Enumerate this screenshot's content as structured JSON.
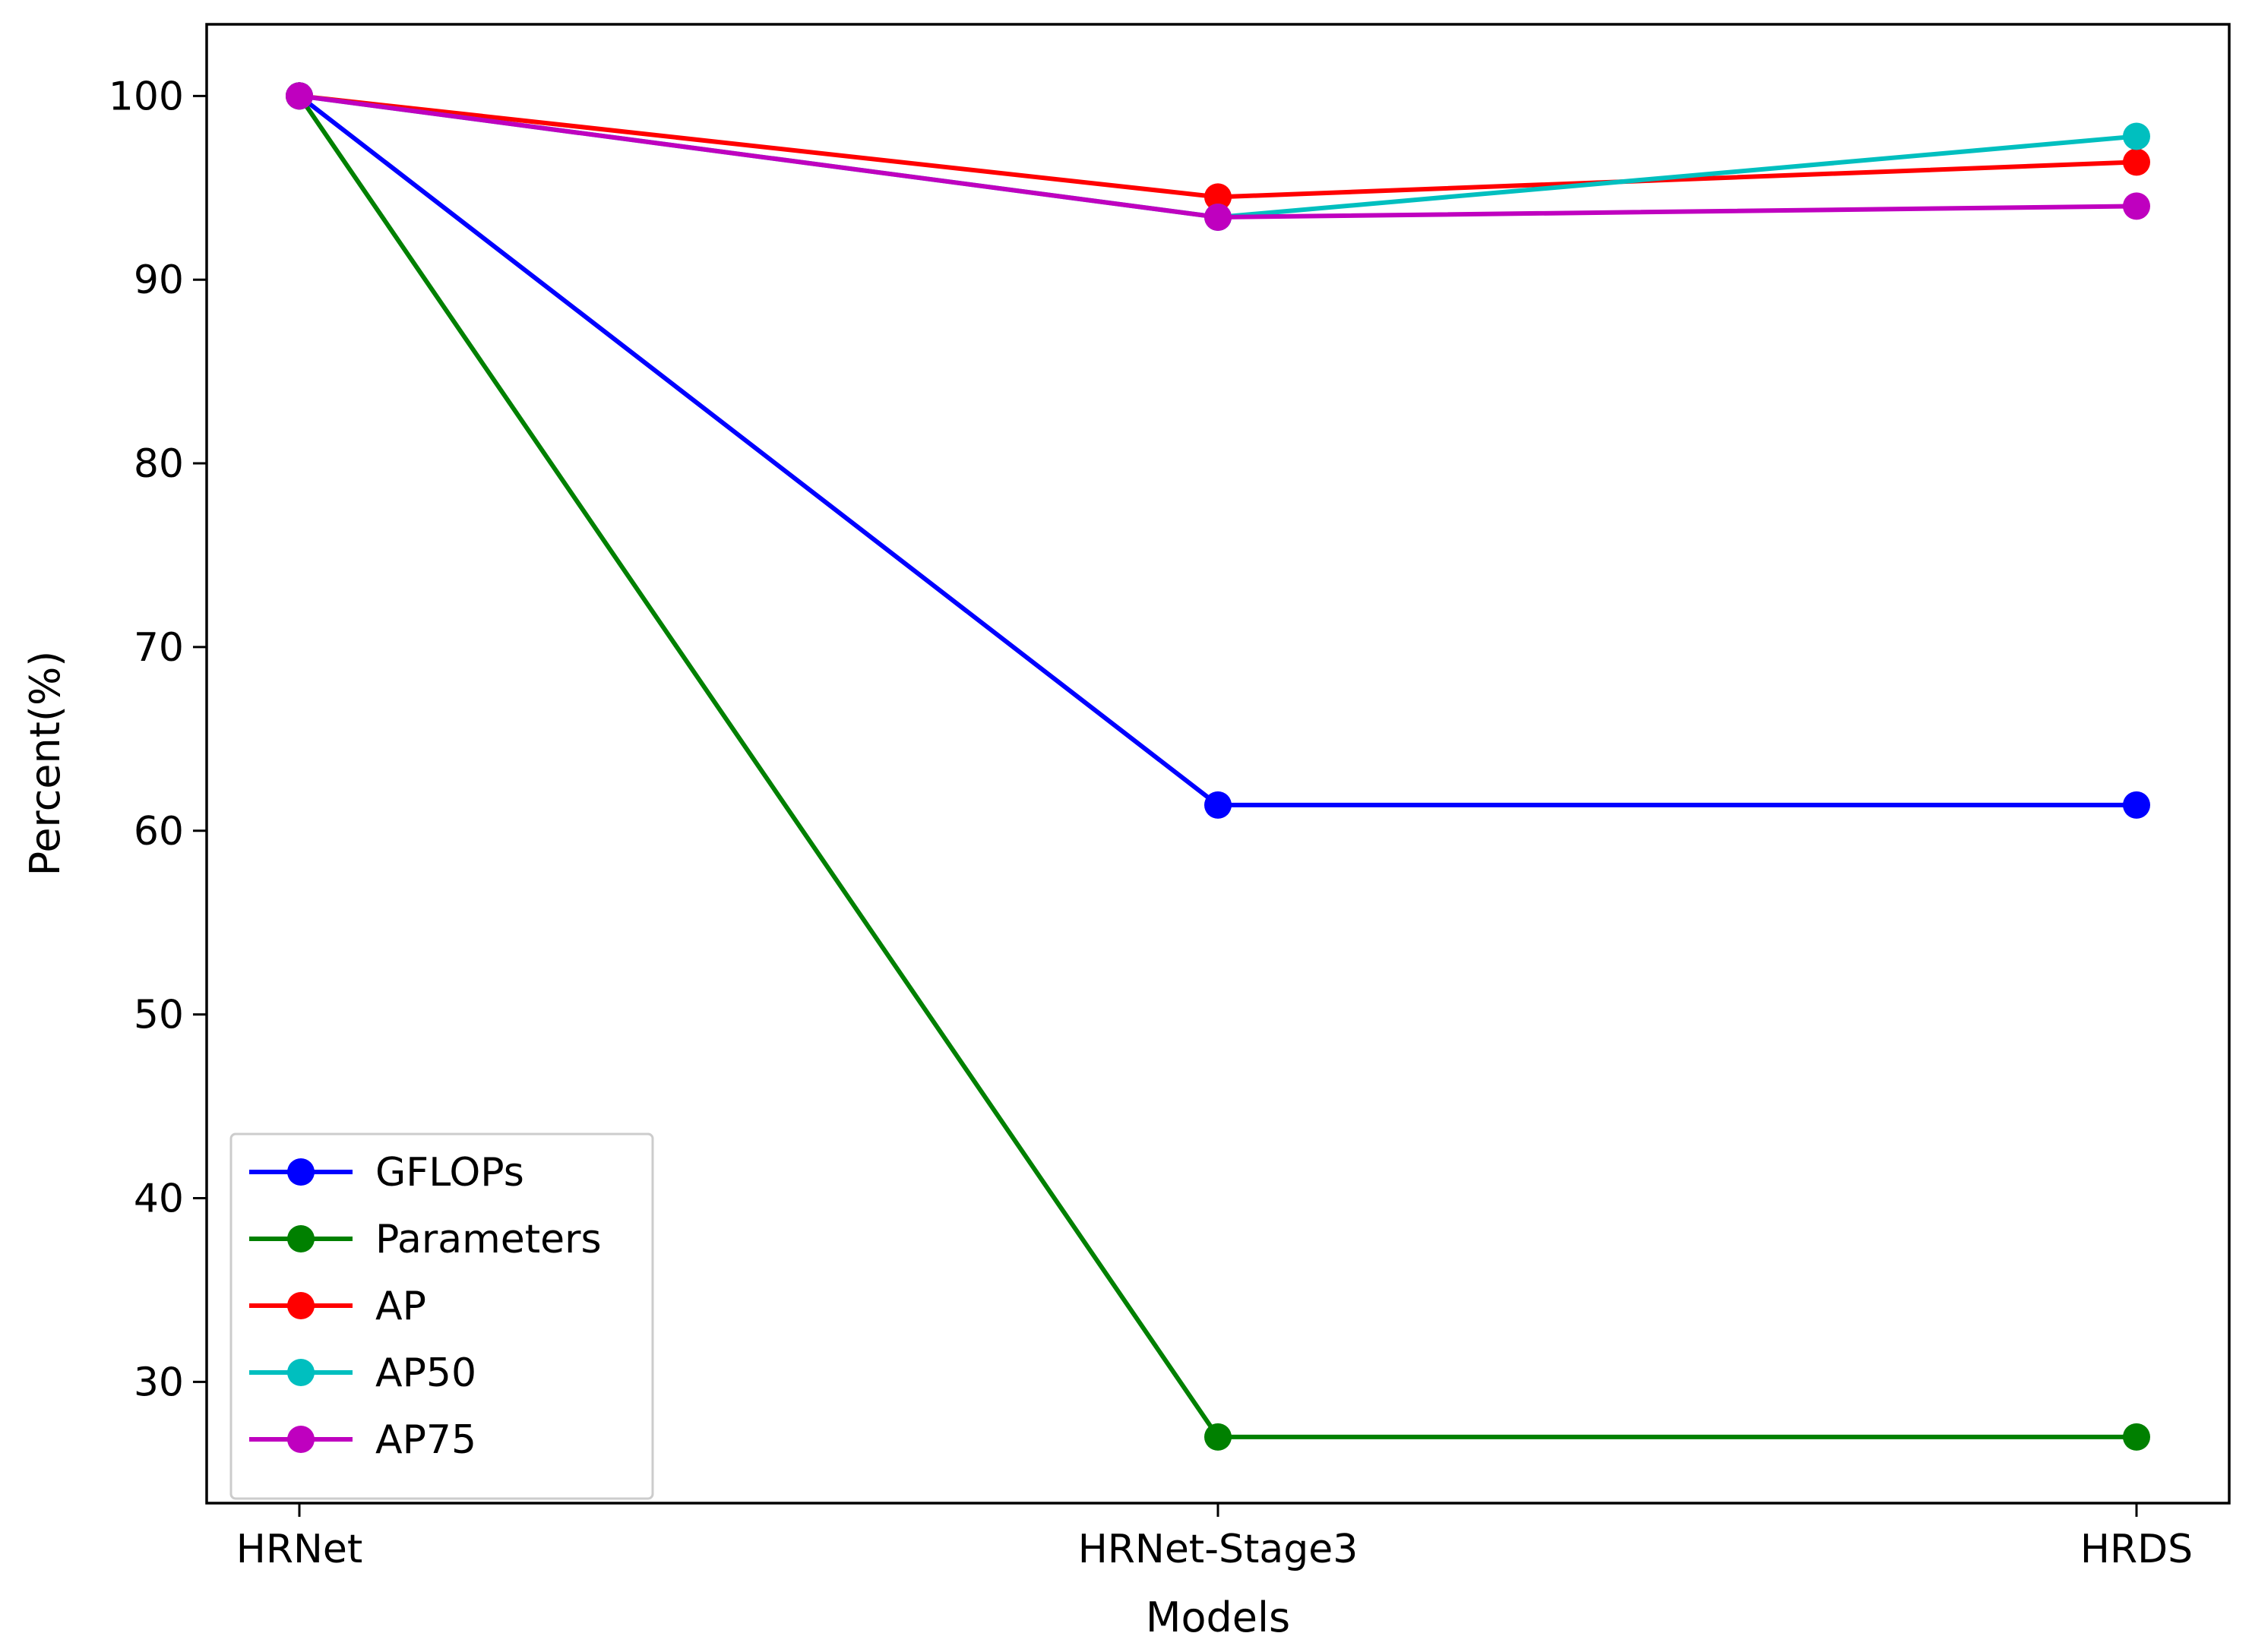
{
  "chart_data": {
    "type": "line",
    "title": "",
    "xlabel": "Models",
    "ylabel": "Percent(%)",
    "categories": [
      "HRNet",
      "HRNet-Stage3",
      "HRDS"
    ],
    "ylim": [
      23.4,
      103.9
    ],
    "yticks": [
      30,
      40,
      50,
      60,
      70,
      80,
      90,
      100
    ],
    "grid": false,
    "legend_position": "lower-left",
    "series": [
      {
        "name": "GFLOPs",
        "color": "#0000ff",
        "values": [
          100,
          61.4,
          61.4
        ]
      },
      {
        "name": "Parameters",
        "color": "#008000",
        "values": [
          100,
          27.0,
          27.0
        ]
      },
      {
        "name": "AP",
        "color": "#ff0000",
        "values": [
          100,
          94.5,
          96.4
        ]
      },
      {
        "name": "AP50",
        "color": "#00bfbf",
        "values": [
          100,
          93.4,
          97.8
        ]
      },
      {
        "name": "AP75",
        "color": "#bf00bf",
        "values": [
          100,
          93.4,
          94.0
        ]
      }
    ]
  }
}
